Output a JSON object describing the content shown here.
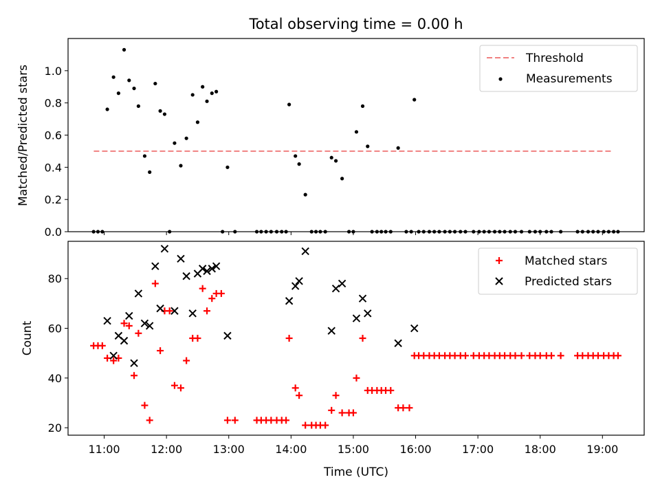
{
  "title": "Total observing time = 0.00 h",
  "colors": {
    "threshold": "#f08080",
    "measurement": "#000000",
    "matched": "#ff0000",
    "predicted": "#000000"
  },
  "chart_data": [
    {
      "type": "scatter",
      "ylabel": "Matched/Predicted stars",
      "ylim": [
        0,
        1.2
      ],
      "yticks": [
        "0.0",
        "0.2",
        "0.4",
        "0.6",
        "0.8",
        "1.0"
      ],
      "grid": false,
      "legend": {
        "placement": "top-right",
        "threshold_label": "Threshold",
        "measurements_label": "Measurements"
      },
      "threshold": {
        "value": 0.5,
        "x_start": 10.833,
        "x_end": 19.167
      },
      "series": [
        {
          "name": "Measurements",
          "points": [
            [
              10.83,
              0
            ],
            [
              10.9,
              0
            ],
            [
              10.97,
              0
            ],
            [
              11.05,
              0.76
            ],
            [
              11.15,
              0.96
            ],
            [
              11.23,
              0.86
            ],
            [
              11.32,
              1.13
            ],
            [
              11.4,
              0.94
            ],
            [
              11.48,
              0.89
            ],
            [
              11.55,
              0.78
            ],
            [
              11.65,
              0.47
            ],
            [
              11.73,
              0.37
            ],
            [
              11.82,
              0.92
            ],
            [
              11.9,
              0.75
            ],
            [
              11.97,
              0.73
            ],
            [
              12.05,
              0
            ],
            [
              12.13,
              0.55
            ],
            [
              12.23,
              0.41
            ],
            [
              12.32,
              0.58
            ],
            [
              12.42,
              0.85
            ],
            [
              12.5,
              0.68
            ],
            [
              12.58,
              0.9
            ],
            [
              12.65,
              0.81
            ],
            [
              12.73,
              0.86
            ],
            [
              12.8,
              0.87
            ],
            [
              12.9,
              0
            ],
            [
              12.98,
              0.4
            ],
            [
              13.1,
              0
            ],
            [
              13.45,
              0
            ],
            [
              13.52,
              0
            ],
            [
              13.6,
              0
            ],
            [
              13.68,
              0
            ],
            [
              13.77,
              0
            ],
            [
              13.85,
              0
            ],
            [
              13.92,
              0
            ],
            [
              13.97,
              0.79
            ],
            [
              14.07,
              0.47
            ],
            [
              14.13,
              0.42
            ],
            [
              14.23,
              0.23
            ],
            [
              14.33,
              0
            ],
            [
              14.4,
              0
            ],
            [
              14.47,
              0
            ],
            [
              14.55,
              0
            ],
            [
              14.65,
              0.46
            ],
            [
              14.72,
              0.44
            ],
            [
              14.82,
              0.33
            ],
            [
              14.93,
              0
            ],
            [
              15,
              0
            ],
            [
              15.05,
              0.62
            ],
            [
              15.15,
              0.78
            ],
            [
              15.23,
              0.53
            ],
            [
              15.3,
              0
            ],
            [
              15.38,
              0
            ],
            [
              15.45,
              0
            ],
            [
              15.52,
              0
            ],
            [
              15.6,
              0
            ],
            [
              15.72,
              0.52
            ],
            [
              15.85,
              0
            ],
            [
              15.93,
              0
            ],
            [
              15.98,
              0.82
            ],
            [
              16.05,
              0
            ],
            [
              16.13,
              0
            ],
            [
              16.22,
              0
            ],
            [
              16.3,
              0
            ],
            [
              16.38,
              0
            ],
            [
              16.47,
              0
            ],
            [
              16.55,
              0
            ],
            [
              16.63,
              0
            ],
            [
              16.72,
              0
            ],
            [
              16.8,
              0
            ],
            [
              16.93,
              0
            ],
            [
              17.02,
              0
            ],
            [
              17.1,
              0
            ],
            [
              17.18,
              0
            ],
            [
              17.27,
              0
            ],
            [
              17.35,
              0
            ],
            [
              17.43,
              0
            ],
            [
              17.52,
              0
            ],
            [
              17.6,
              0
            ],
            [
              17.7,
              0
            ],
            [
              17.83,
              0
            ],
            [
              17.92,
              0
            ],
            [
              18,
              0
            ],
            [
              18.1,
              0
            ],
            [
              18.18,
              0
            ],
            [
              18.33,
              0
            ],
            [
              18.6,
              0
            ],
            [
              18.68,
              0
            ],
            [
              18.77,
              0
            ],
            [
              18.85,
              0
            ],
            [
              18.93,
              0
            ],
            [
              19.02,
              0
            ],
            [
              19.1,
              0
            ],
            [
              19.18,
              0
            ],
            [
              19.25,
              0
            ]
          ]
        }
      ]
    },
    {
      "type": "scatter",
      "xlabel": "Time (UTC)",
      "ylabel": "Count",
      "xlim": [
        10.42,
        19.67
      ],
      "ylim": [
        17,
        95
      ],
      "xticks": [
        "11:00",
        "12:00",
        "13:00",
        "14:00",
        "15:00",
        "16:00",
        "17:00",
        "18:00",
        "19:00"
      ],
      "yticks": [
        "20",
        "40",
        "60",
        "80"
      ],
      "grid": false,
      "legend": {
        "placement": "top-right"
      },
      "series": [
        {
          "name": "Matched stars",
          "points": [
            [
              10.83,
              53
            ],
            [
              10.9,
              53
            ],
            [
              10.97,
              53
            ],
            [
              11.05,
              48
            ],
            [
              11.15,
              47
            ],
            [
              11.23,
              48
            ],
            [
              11.32,
              62
            ],
            [
              11.4,
              61
            ],
            [
              11.48,
              41
            ],
            [
              11.55,
              58
            ],
            [
              11.65,
              29
            ],
            [
              11.73,
              23
            ],
            [
              11.82,
              78
            ],
            [
              11.9,
              51
            ],
            [
              11.97,
              67
            ],
            [
              12.05,
              67
            ],
            [
              12.13,
              37
            ],
            [
              12.23,
              36
            ],
            [
              12.32,
              47
            ],
            [
              12.42,
              56
            ],
            [
              12.5,
              56
            ],
            [
              12.58,
              76
            ],
            [
              12.65,
              67
            ],
            [
              12.73,
              72
            ],
            [
              12.8,
              74
            ],
            [
              12.88,
              74
            ],
            [
              12.98,
              23
            ],
            [
              13.1,
              23
            ],
            [
              13.45,
              23
            ],
            [
              13.52,
              23
            ],
            [
              13.6,
              23
            ],
            [
              13.68,
              23
            ],
            [
              13.77,
              23
            ],
            [
              13.85,
              23
            ],
            [
              13.92,
              23
            ],
            [
              13.97,
              56
            ],
            [
              14.07,
              36
            ],
            [
              14.13,
              33
            ],
            [
              14.23,
              21
            ],
            [
              14.33,
              21
            ],
            [
              14.4,
              21
            ],
            [
              14.47,
              21
            ],
            [
              14.55,
              21
            ],
            [
              14.65,
              27
            ],
            [
              14.72,
              33
            ],
            [
              14.82,
              26
            ],
            [
              14.93,
              26
            ],
            [
              15,
              26
            ],
            [
              15.05,
              40
            ],
            [
              15.15,
              56
            ],
            [
              15.23,
              35
            ],
            [
              15.3,
              35
            ],
            [
              15.38,
              35
            ],
            [
              15.45,
              35
            ],
            [
              15.52,
              35
            ],
            [
              15.6,
              35
            ],
            [
              15.72,
              28
            ],
            [
              15.8,
              28
            ],
            [
              15.9,
              28
            ],
            [
              15.98,
              49
            ],
            [
              16.05,
              49
            ],
            [
              16.13,
              49
            ],
            [
              16.22,
              49
            ],
            [
              16.3,
              49
            ],
            [
              16.38,
              49
            ],
            [
              16.47,
              49
            ],
            [
              16.55,
              49
            ],
            [
              16.63,
              49
            ],
            [
              16.72,
              49
            ],
            [
              16.8,
              49
            ],
            [
              16.93,
              49
            ],
            [
              17.02,
              49
            ],
            [
              17.1,
              49
            ],
            [
              17.18,
              49
            ],
            [
              17.27,
              49
            ],
            [
              17.35,
              49
            ],
            [
              17.43,
              49
            ],
            [
              17.52,
              49
            ],
            [
              17.6,
              49
            ],
            [
              17.7,
              49
            ],
            [
              17.83,
              49
            ],
            [
              17.92,
              49
            ],
            [
              18,
              49
            ],
            [
              18.1,
              49
            ],
            [
              18.18,
              49
            ],
            [
              18.33,
              49
            ],
            [
              18.6,
              49
            ],
            [
              18.68,
              49
            ],
            [
              18.77,
              49
            ],
            [
              18.85,
              49
            ],
            [
              18.93,
              49
            ],
            [
              19.02,
              49
            ],
            [
              19.1,
              49
            ],
            [
              19.18,
              49
            ],
            [
              19.25,
              49
            ]
          ]
        },
        {
          "name": "Predicted stars",
          "points": [
            [
              11.05,
              63
            ],
            [
              11.15,
              49
            ],
            [
              11.23,
              57
            ],
            [
              11.32,
              55
            ],
            [
              11.4,
              65
            ],
            [
              11.48,
              46
            ],
            [
              11.55,
              74
            ],
            [
              11.65,
              62
            ],
            [
              11.73,
              61
            ],
            [
              11.82,
              85
            ],
            [
              11.9,
              68
            ],
            [
              11.97,
              92
            ],
            [
              12.13,
              67
            ],
            [
              12.23,
              88
            ],
            [
              12.32,
              81
            ],
            [
              12.42,
              66
            ],
            [
              12.5,
              82
            ],
            [
              12.58,
              84
            ],
            [
              12.65,
              83
            ],
            [
              12.73,
              84
            ],
            [
              12.8,
              85
            ],
            [
              12.98,
              57
            ],
            [
              13.97,
              71
            ],
            [
              14.07,
              77
            ],
            [
              14.13,
              79
            ],
            [
              14.23,
              91
            ],
            [
              14.65,
              59
            ],
            [
              14.72,
              76
            ],
            [
              14.82,
              78
            ],
            [
              15.05,
              64
            ],
            [
              15.15,
              72
            ],
            [
              15.23,
              66
            ],
            [
              15.72,
              54
            ],
            [
              15.98,
              60
            ]
          ]
        }
      ]
    }
  ]
}
